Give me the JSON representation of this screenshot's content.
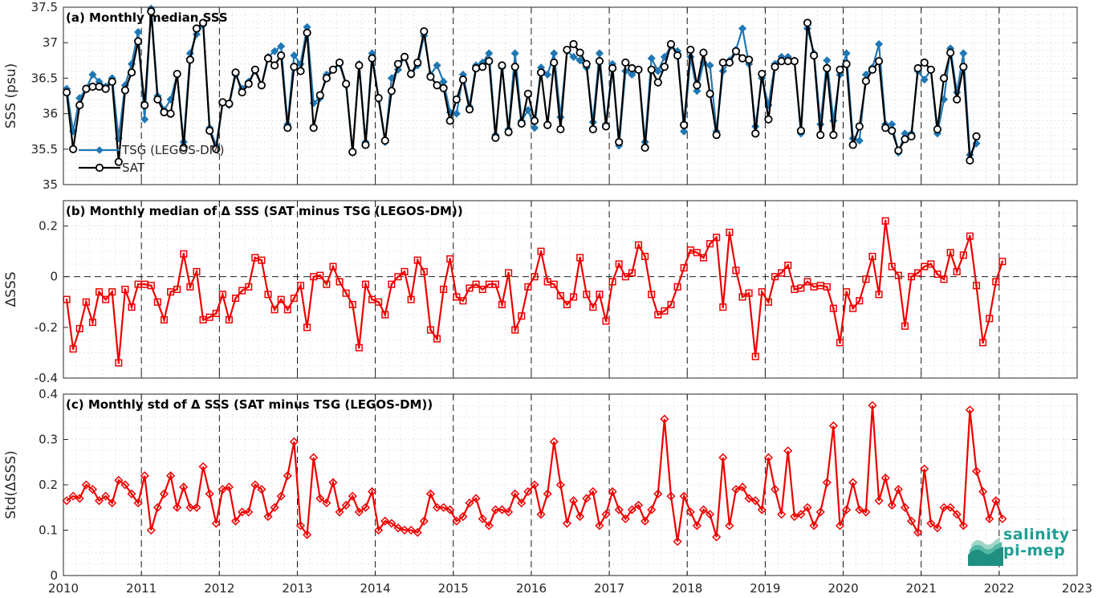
{
  "chart_data": [
    {
      "type": "line",
      "title": "(a) Monthly median SSS",
      "ylabel": "SSS (psu)",
      "ylim": [
        35,
        37.5
      ],
      "yticks": [
        35,
        35.5,
        36,
        36.5,
        37,
        37.5
      ],
      "ytick_labels": [
        "35",
        "35.5",
        "36",
        "36.5",
        "37",
        "37.5"
      ],
      "xlim": [
        2010,
        2023
      ],
      "grid": true,
      "legend": "bottom-left",
      "x_start": "2010-01",
      "series": [
        {
          "name": "TSG (LEGOS-DM)",
          "color": "#1f77b4",
          "marker": "diamond",
          "values": [
            36.35,
            35.75,
            36.22,
            36.35,
            36.55,
            36.45,
            36.38,
            36.5,
            35.65,
            36.4,
            36.7,
            37.15,
            35.92,
            37.48,
            36.25,
            36.05,
            36.2,
            36.55,
            35.6,
            36.85,
            37.12,
            37.25,
            35.8,
            35.55,
            36.15,
            36.12,
            36.55,
            36.35,
            36.45,
            36.6,
            36.4,
            36.8,
            36.88,
            36.95,
            35.85,
            36.82,
            36.7,
            37.22,
            36.15,
            36.22,
            36.55,
            36.62,
            36.7,
            36.4,
            35.45,
            36.7,
            35.6,
            36.85,
            36.2,
            35.6,
            36.5,
            36.62,
            36.8,
            36.55,
            36.68,
            37.1,
            36.55,
            36.68,
            36.45,
            36.02,
            36.0,
            36.55,
            36.1,
            36.68,
            36.72,
            36.85,
            35.7,
            36.65,
            35.78,
            36.85,
            35.9,
            36.05,
            35.8,
            36.65,
            36.55,
            36.85,
            35.95,
            36.88,
            36.8,
            36.75,
            36.65,
            35.88,
            36.85,
            35.85,
            36.7,
            35.55,
            36.6,
            36.55,
            36.62,
            35.6,
            36.78,
            36.6,
            36.8,
            36.95,
            36.88,
            35.75,
            36.8,
            36.32,
            36.72,
            36.68,
            35.75,
            36.6,
            36.75,
            36.9,
            37.2,
            36.7,
            35.82,
            36.5,
            36.12,
            36.7,
            36.8,
            36.8,
            36.75,
            35.72,
            37.2,
            36.85,
            35.85,
            36.75,
            35.9,
            36.55,
            36.85,
            35.65,
            35.62,
            36.55,
            36.65,
            36.98,
            35.85,
            35.85,
            35.45,
            35.72,
            35.72,
            36.6,
            36.48,
            36.62,
            35.72,
            36.2,
            36.92,
            36.3,
            36.85,
            35.42,
            35.58
          ]
        },
        {
          "name": "SAT",
          "color": "#000000",
          "marker": "circle",
          "values": [
            36.3,
            35.5,
            36.12,
            36.35,
            36.38,
            36.38,
            36.35,
            36.45,
            35.32,
            36.33,
            36.58,
            37.02,
            36.12,
            37.44,
            36.2,
            36.02,
            36.0,
            36.56,
            35.52,
            36.76,
            37.2,
            37.28,
            35.76,
            35.5,
            36.16,
            36.14,
            36.58,
            36.3,
            36.42,
            36.62,
            36.4,
            36.78,
            36.68,
            36.82,
            35.8,
            36.66,
            36.6,
            37.14,
            35.8,
            36.26,
            36.5,
            36.62,
            36.72,
            36.42,
            35.46,
            36.68,
            35.56,
            36.78,
            36.22,
            35.62,
            36.32,
            36.7,
            36.8,
            36.56,
            36.72,
            37.16,
            36.52,
            36.4,
            36.36,
            35.9,
            36.2,
            36.48,
            36.06,
            36.64,
            36.66,
            36.74,
            35.66,
            36.68,
            35.74,
            36.66,
            35.86,
            36.28,
            35.9,
            36.58,
            35.84,
            36.72,
            35.78,
            36.9,
            36.98,
            36.86,
            36.7,
            35.78,
            36.74,
            35.82,
            36.64,
            35.6,
            36.72,
            36.64,
            36.62,
            35.52,
            36.62,
            36.44,
            36.66,
            36.98,
            36.82,
            35.84,
            36.9,
            36.4,
            36.86,
            36.28,
            35.7,
            36.72,
            36.72,
            36.88,
            36.78,
            36.76,
            35.72,
            36.56,
            35.92,
            36.66,
            36.74,
            36.74,
            36.74,
            35.76,
            37.28,
            36.82,
            35.7,
            36.64,
            35.7,
            36.62,
            36.7,
            35.56,
            35.82,
            36.46,
            36.62,
            36.74,
            35.8,
            35.76,
            35.48,
            35.64,
            35.68,
            36.64,
            36.72,
            36.62,
            35.78,
            36.5,
            36.86,
            36.2,
            36.66,
            35.34,
            35.68
          ]
        }
      ]
    },
    {
      "type": "line",
      "title": "(b) Monthly median of Δ SSS (SAT minus TSG (LEGOS-DM))",
      "ylabel": "ΔSSS",
      "ylim": [
        -0.4,
        0.3
      ],
      "yticks": [
        -0.4,
        -0.2,
        0,
        0.2
      ],
      "ytick_labels": [
        "-0.4",
        "-0.2",
        "0",
        "0.2"
      ],
      "xlim": [
        2010,
        2023
      ],
      "grid": true,
      "zero_line": true,
      "x_start": "2010-01",
      "series": [
        {
          "name": "",
          "color": "#ee0000",
          "marker": "square",
          "values": [
            -0.09,
            -0.285,
            -0.205,
            -0.1,
            -0.18,
            -0.06,
            -0.09,
            -0.06,
            -0.34,
            -0.05,
            -0.12,
            -0.03,
            -0.03,
            -0.035,
            -0.1,
            -0.17,
            -0.06,
            -0.05,
            0.09,
            -0.04,
            0.02,
            -0.17,
            -0.16,
            -0.145,
            -0.07,
            -0.17,
            -0.085,
            -0.055,
            -0.04,
            0.075,
            0.065,
            -0.07,
            -0.13,
            -0.09,
            -0.13,
            -0.085,
            -0.035,
            -0.2,
            0.0,
            0.005,
            -0.03,
            0.04,
            -0.02,
            -0.065,
            -0.11,
            -0.28,
            -0.03,
            -0.09,
            -0.1,
            -0.15,
            -0.03,
            0.0,
            0.02,
            -0.09,
            0.065,
            0.02,
            -0.21,
            -0.245,
            -0.05,
            0.07,
            -0.08,
            -0.095,
            -0.045,
            -0.03,
            -0.05,
            -0.03,
            -0.03,
            -0.11,
            0.015,
            -0.21,
            -0.155,
            -0.04,
            0.0,
            0.1,
            -0.02,
            -0.03,
            -0.075,
            -0.11,
            -0.08,
            0.075,
            -0.07,
            -0.12,
            -0.07,
            -0.175,
            -0.02,
            0.05,
            0.0,
            0.015,
            0.125,
            0.08,
            -0.07,
            -0.15,
            -0.135,
            -0.11,
            -0.04,
            0.035,
            0.105,
            0.095,
            0.075,
            0.13,
            0.155,
            -0.12,
            0.175,
            0.025,
            -0.08,
            -0.065,
            -0.315,
            -0.06,
            -0.1,
            0.0,
            0.015,
            0.045,
            -0.05,
            -0.045,
            -0.02,
            -0.04,
            -0.035,
            -0.04,
            -0.125,
            -0.26,
            -0.06,
            -0.125,
            -0.095,
            -0.01,
            0.08,
            -0.07,
            0.22,
            0.04,
            0.005,
            -0.195,
            0.0,
            0.015,
            0.04,
            0.05,
            0.01,
            -0.01,
            0.095,
            0.02,
            0.085,
            0.16,
            -0.035,
            -0.26,
            -0.165,
            -0.02,
            0.06
          ]
        }
      ]
    },
    {
      "type": "line",
      "title": "(c) Monthly std of Δ SSS (SAT minus TSG (LEGOS-DM))",
      "ylabel": "Std(ΔSSS)",
      "ylim": [
        0,
        0.4
      ],
      "yticks": [
        0,
        0.1,
        0.2,
        0.3,
        0.4
      ],
      "ytick_labels": [
        "0",
        "0.1",
        "0.2",
        "0.3",
        "0.4"
      ],
      "xlim": [
        2010,
        2023
      ],
      "xticks": [
        2010,
        2011,
        2012,
        2013,
        2014,
        2015,
        2016,
        2017,
        2018,
        2019,
        2020,
        2021,
        2022,
        2023
      ],
      "xtick_labels": [
        "2010",
        "2011",
        "2012",
        "2013",
        "2014",
        "2015",
        "2016",
        "2017",
        "2018",
        "2019",
        "2020",
        "2021",
        "2022",
        "2023"
      ],
      "grid": true,
      "x_start": "2010-01",
      "series": [
        {
          "name": "",
          "color": "#ee0000",
          "marker": "diamond",
          "values": [
            0.165,
            0.175,
            0.17,
            0.2,
            0.19,
            0.165,
            0.175,
            0.16,
            0.21,
            0.2,
            0.18,
            0.16,
            0.22,
            0.1,
            0.15,
            0.18,
            0.22,
            0.15,
            0.195,
            0.15,
            0.15,
            0.24,
            0.18,
            0.115,
            0.19,
            0.195,
            0.12,
            0.14,
            0.14,
            0.2,
            0.19,
            0.13,
            0.15,
            0.175,
            0.22,
            0.295,
            0.11,
            0.09,
            0.26,
            0.17,
            0.16,
            0.205,
            0.14,
            0.155,
            0.175,
            0.14,
            0.15,
            0.185,
            0.1,
            0.12,
            0.115,
            0.105,
            0.1,
            0.1,
            0.095,
            0.12,
            0.18,
            0.15,
            0.15,
            0.145,
            0.12,
            0.13,
            0.16,
            0.17,
            0.125,
            0.11,
            0.145,
            0.145,
            0.14,
            0.18,
            0.16,
            0.185,
            0.2,
            0.135,
            0.18,
            0.295,
            0.2,
            0.115,
            0.165,
            0.13,
            0.17,
            0.185,
            0.11,
            0.135,
            0.185,
            0.145,
            0.125,
            0.145,
            0.155,
            0.12,
            0.145,
            0.18,
            0.345,
            0.175,
            0.075,
            0.175,
            0.14,
            0.11,
            0.145,
            0.135,
            0.085,
            0.26,
            0.11,
            0.19,
            0.195,
            0.17,
            0.165,
            0.145,
            0.26,
            0.19,
            0.135,
            0.275,
            0.13,
            0.135,
            0.15,
            0.11,
            0.14,
            0.205,
            0.33,
            0.11,
            0.145,
            0.205,
            0.145,
            0.14,
            0.375,
            0.165,
            0.215,
            0.155,
            0.19,
            0.15,
            0.12,
            0.095,
            0.235,
            0.115,
            0.105,
            0.15,
            0.15,
            0.135,
            0.11,
            0.365,
            0.23,
            0.185,
            0.125,
            0.165,
            0.125
          ]
        }
      ]
    }
  ],
  "legend_items": [
    {
      "label": "TSG (LEGOS-DM)",
      "color": "#1f77b4"
    },
    {
      "label": "SAT",
      "color": "#000000"
    }
  ],
  "logo": {
    "line1": "salinity",
    "line2": "pi-mep"
  }
}
